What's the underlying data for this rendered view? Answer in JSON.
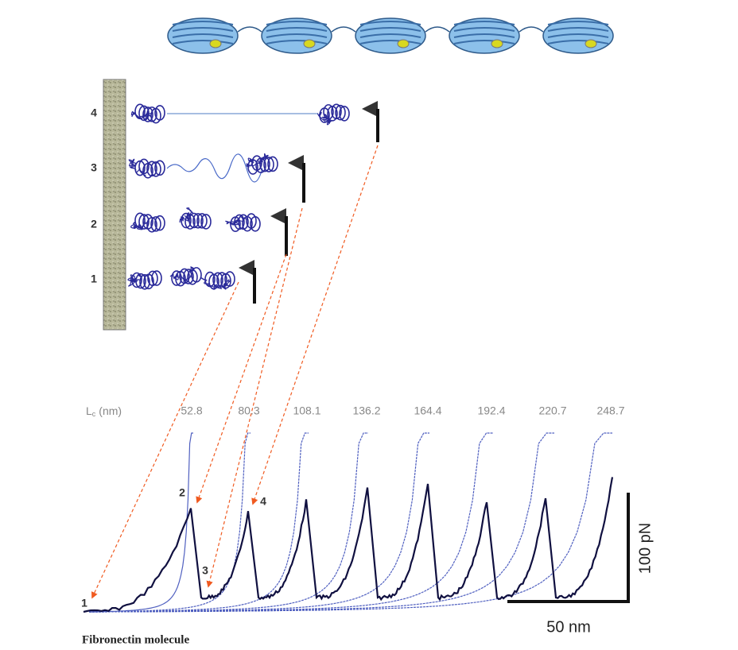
{
  "figure": {
    "states": [
      "4",
      "3",
      "2",
      "1"
    ],
    "contour_length": {
      "symbol": "L",
      "subscript": "c",
      "unit": "(nm)",
      "values": [
        52.8,
        80.3,
        108.1,
        136.2,
        164.4,
        192.4,
        220.7,
        248.7
      ]
    },
    "peak_markers": [
      "1",
      "2",
      "3",
      "4"
    ],
    "force_scale": "100 pN",
    "length_scale": "50 nm",
    "caption": "Fibronectin molecule"
  }
}
